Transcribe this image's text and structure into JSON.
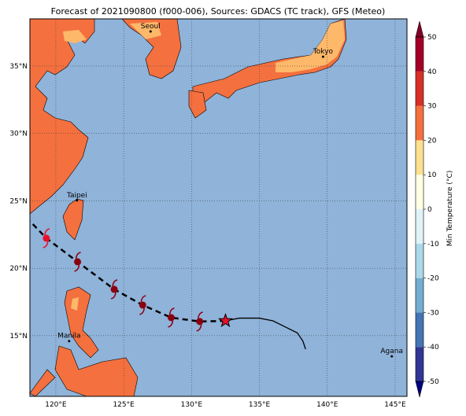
{
  "map": {
    "title": "Forecast of 2021090800 (f000-006), Sources: GDACS (TC track), GFS (Meteo)",
    "lonlim": [
      118.09,
      145.87
    ],
    "latlim": [
      10.5,
      38.5
    ],
    "lonticks": [
      {
        "value": 120,
        "label": "120°E"
      },
      {
        "value": 125,
        "label": "125°E"
      },
      {
        "value": 130,
        "label": "130°E"
      },
      {
        "value": 135,
        "label": "135°E"
      },
      {
        "value": 140,
        "label": "140°E"
      },
      {
        "value": 145,
        "label": "145°E"
      }
    ],
    "latticks": [
      {
        "value": 15,
        "label": "15°N"
      },
      {
        "value": 20,
        "label": "20°N"
      },
      {
        "value": 25,
        "label": "25°N"
      },
      {
        "value": 30,
        "label": "30°N"
      },
      {
        "value": 35,
        "label": "35°N"
      }
    ],
    "cities": [
      {
        "name": "Seoul",
        "lon": 126.98,
        "lat": 37.57
      },
      {
        "name": "Tokyo",
        "lon": 139.69,
        "lat": 35.69
      },
      {
        "name": "Taipei",
        "lon": 121.56,
        "lat": 25.03
      },
      {
        "name": "Manila",
        "lon": 120.98,
        "lat": 14.6
      },
      {
        "name": "Agana",
        "lon": 144.75,
        "lat": 13.47
      }
    ],
    "track": {
      "forecast_lon": [
        132.5,
        130.6,
        128.5,
        126.4,
        124.3,
        121.6,
        119.3,
        118.09
      ],
      "forecast_lat": [
        16.1,
        16.05,
        16.34,
        17.27,
        18.44,
        20.48,
        22.23,
        23.5
      ],
      "storm_lon": [
        130.6,
        128.5,
        126.4,
        124.3,
        121.6,
        119.3
      ],
      "storm_lat": [
        16.05,
        16.34,
        17.27,
        18.44,
        20.48,
        22.23
      ],
      "observed_lon": [
        132.5,
        133.5,
        135.0,
        136.0,
        137.0,
        137.8,
        138.2,
        138.4
      ],
      "observed_lat": [
        16.1,
        16.3,
        16.3,
        16.1,
        15.6,
        15.2,
        14.6,
        14.0
      ]
    },
    "colorbar": {
      "label": "Min Temperature (°C)",
      "lim": [
        -50,
        50
      ],
      "ticks": [
        -50,
        -40,
        -30,
        -20,
        -10,
        0,
        10,
        20,
        30,
        40,
        50
      ],
      "colors": [
        "#313695",
        "#4575b4",
        "#74add1",
        "#abd9e9",
        "#e0f3f8",
        "#ffffe5",
        "#fee090",
        "#f4703f",
        "#d73027",
        "#a50026"
      ]
    }
  }
}
